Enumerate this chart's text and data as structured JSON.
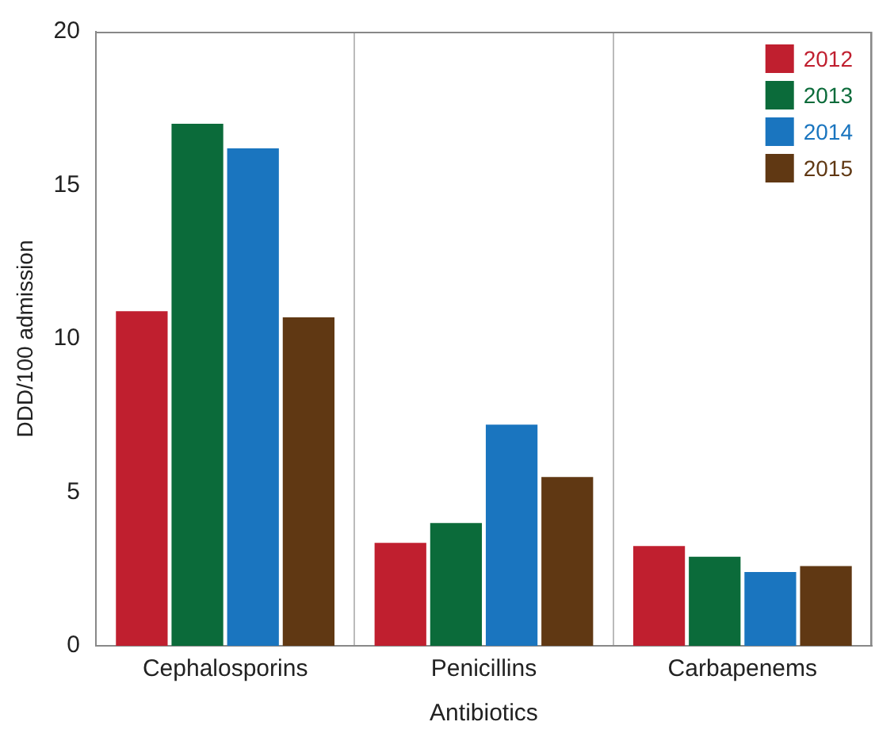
{
  "chart_data": {
    "type": "bar",
    "xlabel": "Antibiotics",
    "ylabel": "DDD/100 admission",
    "categories": [
      "Cephalosporins",
      "Penicillins",
      "Carbapenems"
    ],
    "series": [
      {
        "name": "2012",
        "color": "#c01f2f",
        "values": [
          10.9,
          3.35,
          3.25
        ]
      },
      {
        "name": "2013",
        "color": "#0b6b3a",
        "values": [
          17.0,
          4.0,
          2.9
        ]
      },
      {
        "name": "2014",
        "color": "#1a75bf",
        "values": [
          16.2,
          7.2,
          2.4
        ]
      },
      {
        "name": "2015",
        "color": "#603813",
        "values": [
          10.7,
          5.5,
          2.6
        ]
      }
    ],
    "ylim": [
      0,
      20
    ],
    "yticks": [
      0,
      5,
      10,
      15,
      20
    ],
    "grid": "x",
    "legend": "top right"
  }
}
